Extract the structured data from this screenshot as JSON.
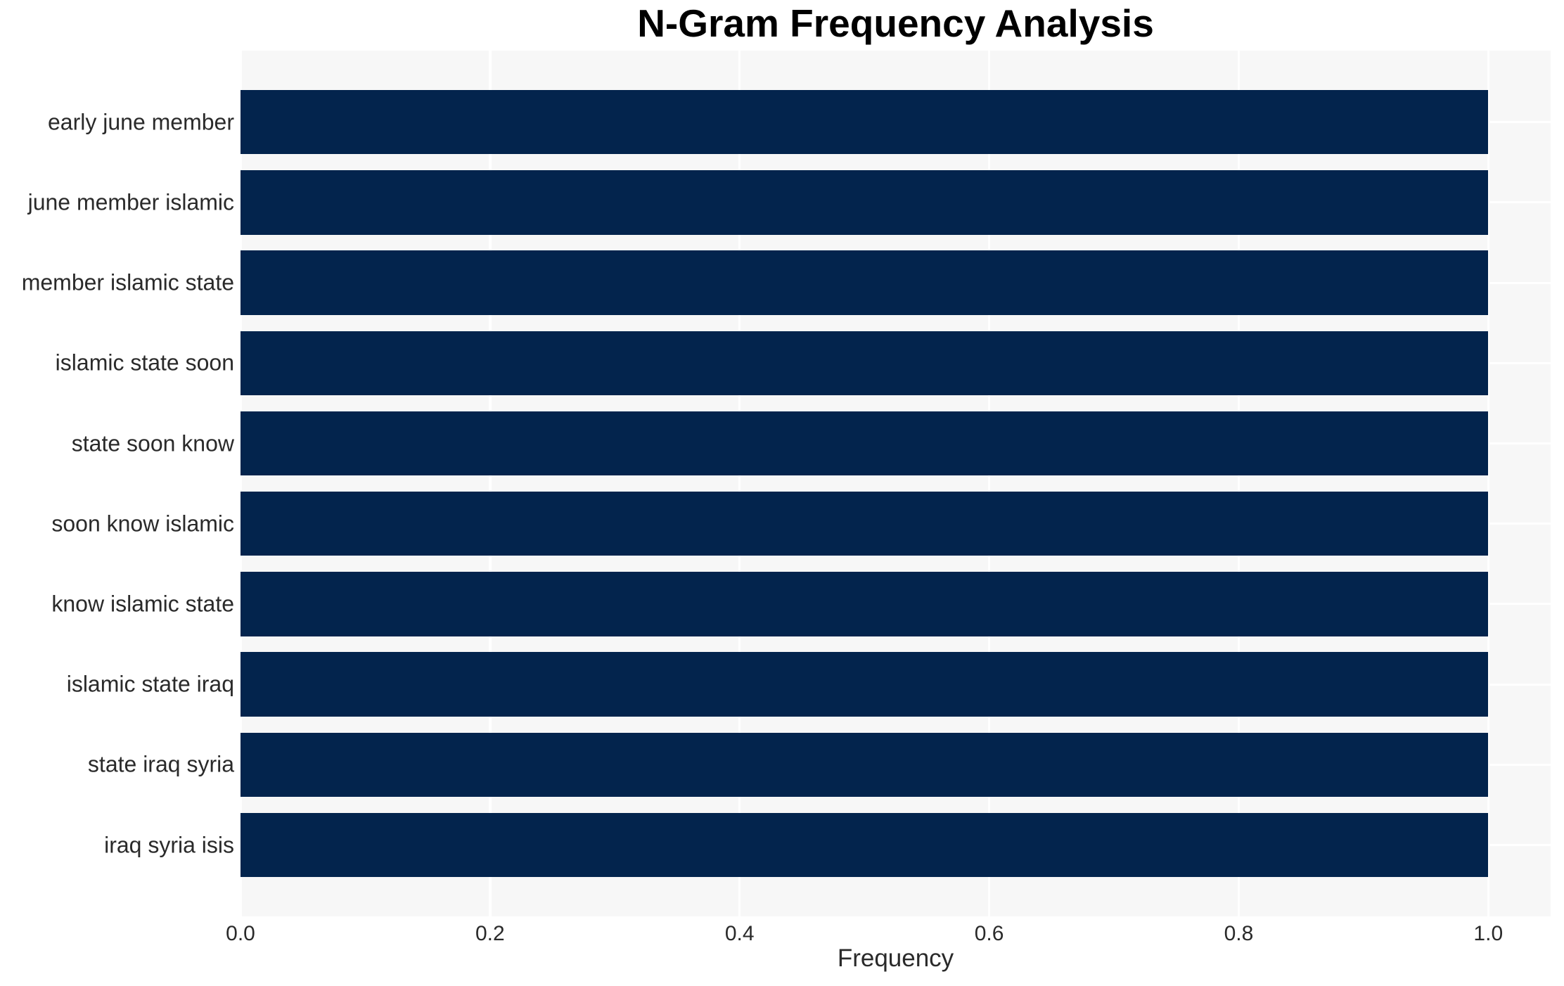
{
  "chart_data": {
    "type": "bar",
    "orientation": "horizontal",
    "title": "N-Gram Frequency Analysis",
    "xlabel": "Frequency",
    "ylabel": "",
    "categories": [
      "early june member",
      "june member islamic",
      "member islamic state",
      "islamic state soon",
      "state soon know",
      "soon know islamic",
      "know islamic state",
      "islamic state iraq",
      "state iraq syria",
      "iraq syria isis"
    ],
    "values": [
      1.0,
      1.0,
      1.0,
      1.0,
      1.0,
      1.0,
      1.0,
      1.0,
      1.0,
      1.0
    ],
    "xlim": [
      0,
      1.05
    ],
    "xticks": [
      0.0,
      0.2,
      0.4,
      0.6,
      0.8,
      1.0
    ],
    "xtick_labels": [
      "0.0",
      "0.2",
      "0.4",
      "0.6",
      "0.8",
      "1.0"
    ],
    "grid": true,
    "legend": false,
    "colors": {
      "bar": "#03244d",
      "plot_background": "#f7f7f7",
      "gridline": "#ffffff",
      "title": "#000000",
      "tick_label": "#2a2a2a"
    }
  }
}
